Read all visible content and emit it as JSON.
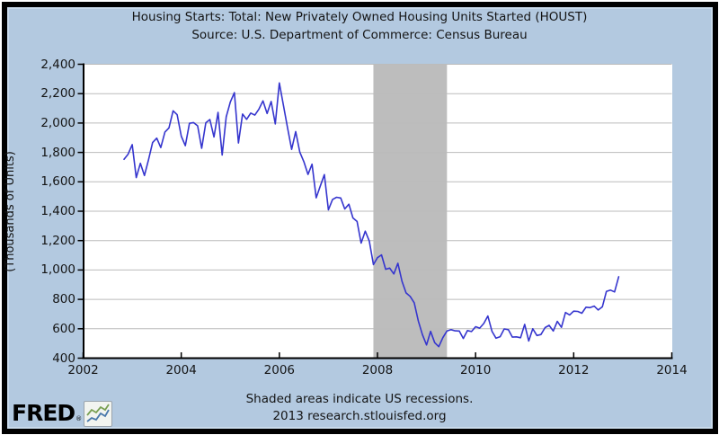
{
  "header": {
    "title": "Housing Starts: Total: New Privately Owned Housing Units Started (HOUST)",
    "source": "Source: U.S. Department of Commerce: Census Bureau"
  },
  "footer": {
    "recession_note": "Shaded areas indicate US recessions.",
    "credit": "2013 research.stlouisfed.org"
  },
  "logo": {
    "text": "FRED",
    "registered_mark": "®",
    "icon": "line-chart-icon"
  },
  "colors": {
    "panel_background": "#B3C9E0",
    "plot_background": "#FFFFFF",
    "line": "#3535CE",
    "recession_band": "#BDBDBD",
    "gridline": "#BBBBBB",
    "axis": "#000000",
    "text": "#141414",
    "border": "#000000"
  },
  "chart_data": {
    "type": "line",
    "title": "Housing Starts: Total: New Privately Owned Housing Units Started (HOUST)",
    "ylabel": "(Thousands of Units)",
    "xlabel": "",
    "grid": true,
    "legend": "none",
    "xlim": [
      2002,
      2014
    ],
    "ylim": [
      400,
      2400
    ],
    "x_tick_values": [
      2002,
      2004,
      2006,
      2008,
      2010,
      2012,
      2014
    ],
    "x_tick_labels": [
      "2002",
      "2004",
      "2006",
      "2008",
      "2010",
      "2012",
      "2014"
    ],
    "y_tick_values": [
      2400,
      2200,
      2000,
      1800,
      1600,
      1400,
      1200,
      1000,
      800,
      600,
      400
    ],
    "y_tick_labels": [
      "2,400",
      "2,200",
      "2,000",
      "1,800",
      "1,600",
      "1,400",
      "1,200",
      "1,000",
      "800",
      "600",
      "400"
    ],
    "recessions": [
      {
        "start": 2007.9167,
        "end": 2009.4167
      }
    ],
    "series": [
      {
        "name": "HOUST",
        "frequency": "monthly",
        "start_year": 2002,
        "start_month": 11,
        "values": [
          1753,
          1788,
          1853,
          1629,
          1726,
          1643,
          1751,
          1867,
          1897,
          1833,
          1939,
          1967,
          2083,
          2057,
          1911,
          1846,
          1998,
          2003,
          1981,
          1828,
          2002,
          2024,
          1905,
          2072,
          1782,
          2042,
          2144,
          2207,
          1864,
          2061,
          2025,
          2068,
          2054,
          2095,
          2151,
          2065,
          2147,
          1994,
          2273,
          2119,
          1969,
          1821,
          1942,
          1802,
          1737,
          1650,
          1720,
          1491,
          1570,
          1649,
          1409,
          1480,
          1495,
          1490,
          1415,
          1448,
          1354,
          1330,
          1183,
          1264,
          1197,
          1037,
          1084,
          1103,
          1005,
          1013,
          973,
          1046,
          923,
          844,
          820,
          777,
          652,
          560,
          490,
          582,
          505,
          478,
          540,
          585,
          594,
          586,
          585,
          534,
          588,
          581,
          614,
          604,
          636,
          687,
          583,
          536,
          546,
          599,
          594,
          543,
          545,
          539,
          630,
          517,
          600,
          554,
          561,
          608,
          623,
          585,
          650,
          610,
          711,
          694,
          720,
          718,
          706,
          747,
          744,
          754,
          728,
          749,
          854,
          863,
          851,
          954
        ]
      }
    ]
  }
}
